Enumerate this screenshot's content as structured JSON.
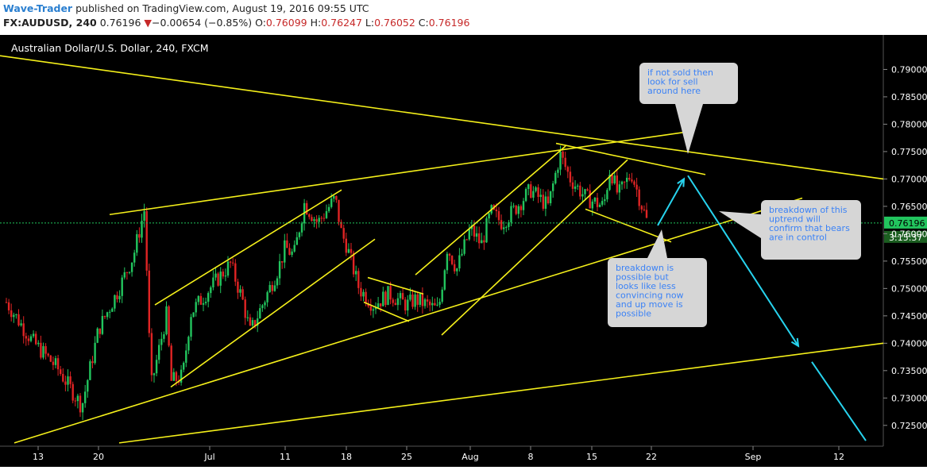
{
  "header": {
    "author": "Wave-Trader",
    "published_text": "published on TradingView.com, August 19, 2016 09:55 UTC",
    "symbol": "FX:AUDUSD, 240",
    "last_price": "0.76196",
    "change_arrow": "▼",
    "change": "−0.00654 (−0.85%)",
    "o_label": "O:",
    "o_value": "0.76099",
    "h_label": "H:",
    "h_value": "0.76247",
    "l_label": "L:",
    "l_value": "0.76052",
    "c_label": "C:",
    "c_value": "0.76196"
  },
  "colors": {
    "background": "#000000",
    "up_candle": "#22c55e",
    "down_candle": "#e02424",
    "trendline": "#f5f01a",
    "projection_arrow": "#27d3ee",
    "callout_bg": "#d6d6d6",
    "callout_text": "#3b82f6",
    "price_label_bg": "#22c55e"
  },
  "chart_data": {
    "type": "candlestick",
    "title": "Australian Dollar/U.S. Dollar, 240, FXCM",
    "y_axis": {
      "ticks": [
        "0.79000",
        "0.78500",
        "0.78000",
        "0.77500",
        "0.77000",
        "0.76500",
        "0.76000",
        "0.75500",
        "0.75000",
        "0.74500",
        "0.74000",
        "0.73500",
        "0.73000",
        "0.72500"
      ],
      "ylim": [
        0.7212,
        0.7963
      ]
    },
    "x_axis": {
      "ticks": [
        "13",
        "20",
        "Jul",
        "11",
        "18",
        "25",
        "Aug",
        "8",
        "15",
        "22",
        "Sep",
        "12"
      ]
    },
    "current_price_label": "0.76196",
    "countdown_label": "3:15:37",
    "price_path": [
      {
        "t": "13",
        "p": 0.7475
      },
      {
        "t": "14",
        "p": 0.7405
      },
      {
        "t": "16",
        "p": 0.7355
      },
      {
        "t": "17",
        "p": 0.7285
      },
      {
        "t": "20",
        "p": 0.7425
      },
      {
        "t": "22",
        "p": 0.75
      },
      {
        "t": "23",
        "p": 0.756
      },
      {
        "t": "23.5",
        "p": 0.7645
      },
      {
        "t": "24",
        "p": 0.732
      },
      {
        "t": "25",
        "p": 0.7455
      },
      {
        "t": "26",
        "p": 0.734
      },
      {
        "t": "27",
        "p": 0.733
      },
      {
        "t": "29",
        "p": 0.7455
      },
      {
        "t": "Jul",
        "p": 0.75
      },
      {
        "t": "Jul 2",
        "p": 0.7545
      },
      {
        "t": "Jul 5",
        "p": 0.748
      },
      {
        "t": "Jul 7",
        "p": 0.742
      },
      {
        "t": "Jul 10",
        "p": 0.7535
      },
      {
        "t": "11",
        "p": 0.7575
      },
      {
        "t": "12",
        "p": 0.756
      },
      {
        "t": "13",
        "p": 0.7655
      },
      {
        "t": "15",
        "p": 0.762
      },
      {
        "t": "16",
        "p": 0.7665
      },
      {
        "t": "17",
        "p": 0.76
      },
      {
        "t": "18",
        "p": 0.758
      },
      {
        "t": "19",
        "p": 0.75
      },
      {
        "t": "21",
        "p": 0.747
      },
      {
        "t": "23",
        "p": 0.749
      },
      {
        "t": "25",
        "p": 0.747
      },
      {
        "t": "26",
        "p": 0.748
      },
      {
        "t": "27",
        "p": 0.746
      },
      {
        "t": "28",
        "p": 0.7575
      },
      {
        "t": "29",
        "p": 0.7535
      },
      {
        "t": "31",
        "p": 0.76
      },
      {
        "t": "Aug",
        "p": 0.761
      },
      {
        "t": "Aug 2",
        "p": 0.764
      },
      {
        "t": "Aug 3",
        "p": 0.758
      },
      {
        "t": "5",
        "p": 0.764
      },
      {
        "t": "6",
        "p": 0.762
      },
      {
        "t": "8",
        "p": 0.768
      },
      {
        "t": "9",
        "p": 0.765
      },
      {
        "t": "10",
        "p": 0.7745
      },
      {
        "t": "11",
        "p": 0.77
      },
      {
        "t": "13",
        "p": 0.7665
      },
      {
        "t": "15",
        "p": 0.765
      },
      {
        "t": "16",
        "p": 0.772
      },
      {
        "t": "17",
        "p": 0.767
      },
      {
        "t": "18",
        "p": 0.771
      },
      {
        "t": "19",
        "p": 0.762
      }
    ]
  },
  "annotations": {
    "callout_top": "if not sold then look for sell around here",
    "callout_middle": "breakdown is possible but looks like less convincing now and up move is possible",
    "callout_right": "breakdown of this uptrend will confirm that bears are in control"
  }
}
